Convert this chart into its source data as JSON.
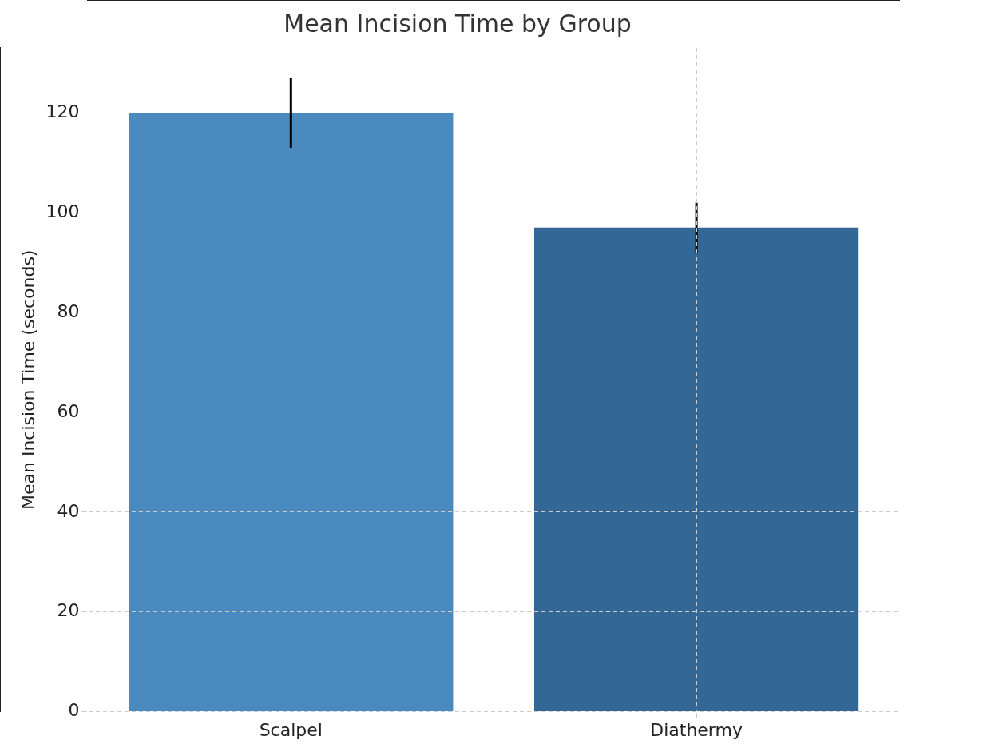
{
  "chart_data": {
    "type": "bar",
    "title": "Mean Incision Time by Group",
    "ylabel": "Mean Incision Time (seconds)",
    "categories": [
      "Scalpel",
      "Diathermy"
    ],
    "values": [
      120,
      97
    ],
    "colors": [
      "#4a8abe",
      "#336896"
    ],
    "errors": [
      7,
      5
    ],
    "ylim": [
      0,
      133
    ],
    "yticks": [
      0,
      20,
      40,
      60,
      80,
      100,
      120
    ],
    "grid": true
  }
}
